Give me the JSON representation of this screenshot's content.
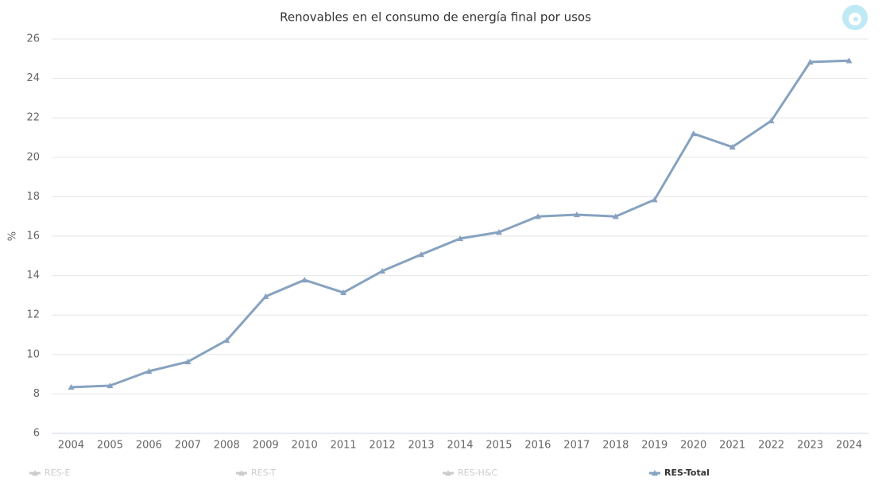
{
  "chart_data": {
    "type": "line",
    "title": "Renovables en el consumo de energía final por usos",
    "y_label": "%",
    "categories": [
      "2004",
      "2005",
      "2006",
      "2007",
      "2008",
      "2009",
      "2010",
      "2011",
      "2012",
      "2013",
      "2014",
      "2015",
      "2016",
      "2017",
      "2018",
      "2019",
      "2020",
      "2021",
      "2022",
      "2023",
      "2024"
    ],
    "series": [
      {
        "name": "RES-E",
        "color": "#cccccc",
        "visible": false
      },
      {
        "name": "RES-T",
        "color": "#cccccc",
        "visible": false
      },
      {
        "name": "RES-H&C",
        "color": "#cccccc",
        "visible": false
      },
      {
        "name": "RES-Total",
        "color": "#87a2c0",
        "visible": true,
        "values": [
          8.34,
          8.42,
          9.15,
          9.63,
          10.72,
          12.94,
          13.78,
          13.14,
          14.23,
          15.07,
          15.88,
          16.2,
          17.0,
          17.09,
          17.0,
          17.85,
          21.2,
          20.52,
          21.85,
          24.83,
          24.9
        ]
      }
    ],
    "ylim": [
      6,
      26
    ],
    "yticks": [
      6,
      8,
      10,
      12,
      14,
      16,
      18,
      20,
      22,
      24,
      26
    ],
    "grid": true
  }
}
